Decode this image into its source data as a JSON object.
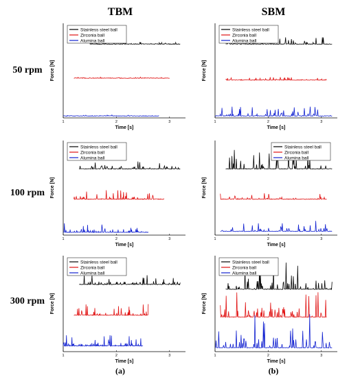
{
  "figure": {
    "column_titles": [
      "TBM",
      "SBM"
    ],
    "row_labels": [
      "50 rpm",
      "100 rpm",
      "300 rpm"
    ],
    "sub_labels": [
      "(a)",
      "(b)"
    ]
  },
  "colors": {
    "stainless": "#000000",
    "zirconia": "#e01010",
    "alumina": "#1020d0"
  },
  "chart_data": [
    {
      "id": "tbm-50",
      "type": "line",
      "xlabel": "Time [s]",
      "ylabel": "Force [N]",
      "xlim": [
        1,
        3.3
      ],
      "xticks": [
        1,
        2,
        3
      ],
      "legend": [
        "Stainless steel ball",
        "Zirconia ball",
        "Alumina ball"
      ],
      "legend_position": "top-left",
      "series": [
        {
          "name": "Stainless steel ball",
          "x_range": [
            1.5,
            3.2
          ],
          "baseline": 0.78,
          "spike_level": 0.02
        },
        {
          "name": "Zirconia ball",
          "x_range": [
            1.2,
            3.0
          ],
          "baseline": 0.42,
          "spike_level": 0.01
        },
        {
          "name": "Alumina ball",
          "x_range": [
            1.0,
            2.8
          ],
          "baseline": 0.02,
          "spike_level": 0.01
        }
      ]
    },
    {
      "id": "sbm-50",
      "type": "line",
      "xlabel": "Time [s]",
      "ylabel": "Force [N]",
      "xlim": [
        1,
        3.3
      ],
      "xticks": [
        1,
        2,
        3
      ],
      "legend": [
        "Stainless steel ball",
        "Zirconia ball",
        "Alumina ball"
      ],
      "legend_position": "top-left",
      "series": [
        {
          "name": "Stainless steel ball",
          "x_range": [
            1.2,
            3.2
          ],
          "baseline": 0.78,
          "spike_level": 0.08
        },
        {
          "name": "Zirconia ball",
          "x_range": [
            1.2,
            3.1
          ],
          "baseline": 0.4,
          "spike_level": 0.03
        },
        {
          "name": "Alumina ball",
          "x_range": [
            1.0,
            3.2
          ],
          "baseline": 0.02,
          "spike_level": 0.1
        }
      ]
    },
    {
      "id": "tbm-100",
      "type": "line",
      "xlabel": "Time [s]",
      "ylabel": "Force [N]",
      "xlim": [
        1,
        3.3
      ],
      "xticks": [
        1,
        2,
        3
      ],
      "legend": [
        "Stainless steel ball",
        "Zirconia ball",
        "Alumina ball"
      ],
      "legend_position": "top-left",
      "series": [
        {
          "name": "Stainless steel ball",
          "x_range": [
            1.3,
            3.2
          ],
          "baseline": 0.7,
          "spike_level": 0.1
        },
        {
          "name": "Zirconia ball",
          "x_range": [
            1.2,
            2.9
          ],
          "baseline": 0.38,
          "spike_level": 0.1
        },
        {
          "name": "Alumina ball",
          "x_range": [
            1.0,
            2.6
          ],
          "baseline": 0.03,
          "spike_level": 0.1
        }
      ]
    },
    {
      "id": "sbm-100",
      "type": "line",
      "xlabel": "Time [s]",
      "ylabel": "Force [N]",
      "xlim": [
        1,
        3.3
      ],
      "xticks": [
        1,
        2,
        3
      ],
      "legend": [
        "Stainless steel ball",
        "Zirconia ball",
        "Alumina ball"
      ],
      "legend_position": "top-right",
      "series": [
        {
          "name": "Stainless steel ball",
          "x_range": [
            1.2,
            3.2
          ],
          "baseline": 0.7,
          "spike_level": 0.2
        },
        {
          "name": "Zirconia ball",
          "x_range": [
            1.1,
            3.1
          ],
          "baseline": 0.38,
          "spike_level": 0.06
        },
        {
          "name": "Alumina ball",
          "x_range": [
            1.1,
            3.2
          ],
          "baseline": 0.04,
          "spike_level": 0.12
        }
      ]
    },
    {
      "id": "tbm-300",
      "type": "line",
      "xlabel": "Time [s]",
      "ylabel": "Force [N]",
      "xlim": [
        1,
        3.3
      ],
      "xticks": [
        1,
        2,
        3
      ],
      "legend": [
        "Stainless steel ball",
        "Zirconia ball",
        "Alumina ball"
      ],
      "legend_position": "top-left",
      "series": [
        {
          "name": "Stainless steel ball",
          "x_range": [
            1.3,
            3.2
          ],
          "baseline": 0.7,
          "spike_level": 0.1
        },
        {
          "name": "Zirconia ball",
          "x_range": [
            1.2,
            2.6
          ],
          "baseline": 0.38,
          "spike_level": 0.12
        },
        {
          "name": "Alumina ball",
          "x_range": [
            1.0,
            2.5
          ],
          "baseline": 0.06,
          "spike_level": 0.12
        }
      ]
    },
    {
      "id": "sbm-300",
      "type": "line",
      "xlabel": "Time [s]",
      "ylabel": "Force [N]",
      "xlim": [
        1,
        3.3
      ],
      "xticks": [
        1,
        2,
        3
      ],
      "legend": [
        "Stainless steel ball",
        "Zirconia ball",
        "Alumina ball"
      ],
      "legend_position": "top-left",
      "series": [
        {
          "name": "Stainless steel ball",
          "x_range": [
            1.2,
            3.2
          ],
          "baseline": 0.65,
          "spike_level": 0.3
        },
        {
          "name": "Zirconia ball",
          "x_range": [
            1.1,
            3.1
          ],
          "baseline": 0.36,
          "spike_level": 0.35
        },
        {
          "name": "Alumina ball",
          "x_range": [
            1.0,
            3.2
          ],
          "baseline": 0.04,
          "spike_level": 0.35
        }
      ]
    }
  ]
}
